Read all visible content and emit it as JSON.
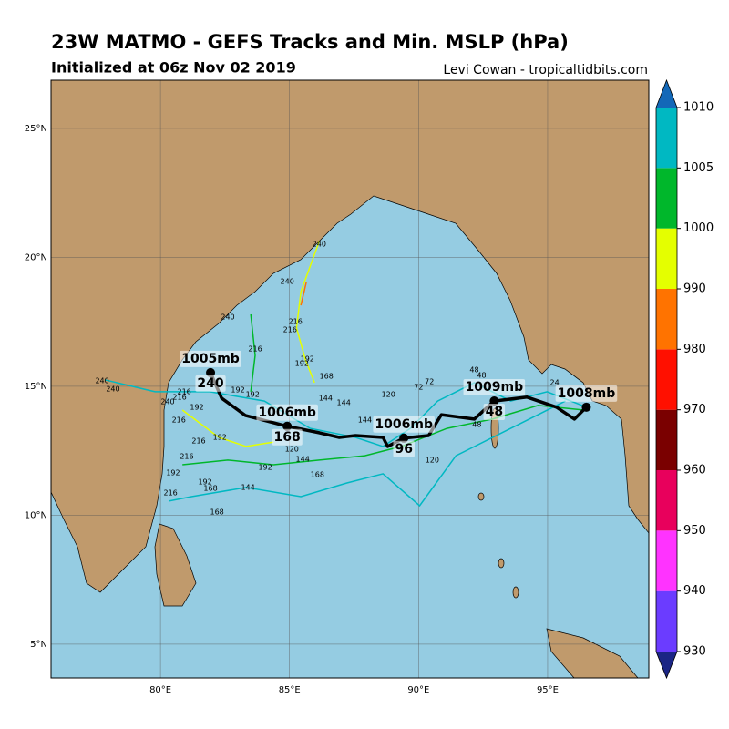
{
  "header": {
    "title": "23W MATMO - GEFS Tracks and Min. MSLP (hPa)",
    "subtitle": "Initialized at 06z Nov 02 2019",
    "credit": "Levi Cowan - tropicaltidbits.com"
  },
  "map": {
    "xlim": [
      75.76,
      98.92
    ],
    "ylim": [
      3.69,
      26.87
    ],
    "lon_ticks": [
      {
        "value": 80,
        "label": "80°E"
      },
      {
        "value": 85,
        "label": "85°E"
      },
      {
        "value": 90,
        "label": "90°E"
      },
      {
        "value": 95,
        "label": "95°E"
      }
    ],
    "lat_ticks": [
      {
        "value": 5,
        "label": "5°N"
      },
      {
        "value": 10,
        "label": "10°N"
      },
      {
        "value": 15,
        "label": "15°N"
      },
      {
        "value": 20,
        "label": "20°N"
      },
      {
        "value": 25,
        "label": "25°N"
      }
    ],
    "land_color": "#c09a6c",
    "ocean_color": "#95cce2"
  },
  "colorbar": {
    "ticks": [
      930,
      940,
      950,
      960,
      970,
      980,
      990,
      1000,
      1005,
      1010
    ],
    "colors": [
      "#6b3cff",
      "#ff33ff",
      "#e8005c",
      "#7a0000",
      "#ff1000",
      "#ff7300",
      "#e4ff00",
      "#00b72b",
      "#00b8c2"
    ],
    "under": "#1b2585",
    "over": "#1368b8"
  },
  "members": [
    {
      "pressure": 1006,
      "lon": [
        96.5,
        94.98,
        93.57,
        92.16,
        90.74,
        89.68,
        88.62,
        87.56,
        85.8,
        84.03,
        81.91,
        79.79,
        77.84
      ],
      "lat": [
        14.19,
        14.79,
        14.43,
        15.14,
        14.43,
        13.37,
        12.67,
        13.02,
        13.37,
        14.43,
        14.79,
        14.79,
        15.25
      ]
    },
    {
      "pressure": 1007,
      "lon": [
        95.69,
        93.57,
        91.45,
        90.04,
        88.62,
        87.21,
        85.44,
        83.32,
        81.2,
        80.32
      ],
      "lat": [
        14.43,
        13.37,
        12.31,
        10.37,
        11.61,
        11.25,
        10.72,
        11.08,
        10.72,
        10.55
      ]
    },
    {
      "pressure": 1003,
      "lon": [
        96.4,
        94.63,
        92.86,
        91.1,
        89.33,
        87.92,
        86.15,
        84.38,
        82.61,
        80.85
      ],
      "lat": [
        14.08,
        14.26,
        13.73,
        13.37,
        12.67,
        12.31,
        12.14,
        11.96,
        12.14,
        11.96
      ]
    },
    {
      "pressure": 1002,
      "lon": [
        83.5,
        83.67,
        83.5
      ],
      "lat": [
        17.79,
        16.2,
        14.79
      ]
    },
    {
      "pressure": 995,
      "lon": [
        86.15,
        85.44,
        85.27,
        85.62,
        85.97
      ],
      "lat": [
        20.62,
        18.67,
        17.26,
        16.02,
        15.14
      ]
    },
    {
      "pressure": 995,
      "lon": [
        80.85,
        82.26,
        83.32,
        84.38
      ],
      "lat": [
        14.08,
        13.02,
        12.67,
        12.84
      ]
    },
    {
      "pressure": 985,
      "lon": [
        85.65,
        85.44
      ],
      "lat": [
        19.03,
        18.14
      ]
    }
  ],
  "hour_labels": [
    {
      "text": "240",
      "lon": 86.15,
      "lat": 20.51
    },
    {
      "text": "240",
      "lon": 84.91,
      "lat": 19.06
    },
    {
      "text": "240",
      "lon": 82.61,
      "lat": 17.69
    },
    {
      "text": "240",
      "lon": 77.74,
      "lat": 15.21
    },
    {
      "text": "240",
      "lon": 78.16,
      "lat": 14.89
    },
    {
      "text": "240",
      "lon": 80.28,
      "lat": 14.4
    },
    {
      "text": "216",
      "lon": 85.23,
      "lat": 17.51
    },
    {
      "text": "216",
      "lon": 85.02,
      "lat": 17.19
    },
    {
      "text": "216",
      "lon": 83.67,
      "lat": 16.45
    },
    {
      "text": "216",
      "lon": 80.92,
      "lat": 14.79
    },
    {
      "text": "216",
      "lon": 80.74,
      "lat": 14.58
    },
    {
      "text": "216",
      "lon": 80.71,
      "lat": 13.69
    },
    {
      "text": "216",
      "lon": 81.48,
      "lat": 12.88
    },
    {
      "text": "216",
      "lon": 81.02,
      "lat": 12.28
    },
    {
      "text": "216",
      "lon": 80.39,
      "lat": 10.87
    },
    {
      "text": "192",
      "lon": 85.69,
      "lat": 16.06
    },
    {
      "text": "192",
      "lon": 85.48,
      "lat": 15.88
    },
    {
      "text": "192",
      "lon": 83.0,
      "lat": 14.86
    },
    {
      "text": "192",
      "lon": 83.57,
      "lat": 14.68
    },
    {
      "text": "192",
      "lon": 81.41,
      "lat": 14.19
    },
    {
      "text": "192",
      "lon": 82.3,
      "lat": 13.02
    },
    {
      "text": "192",
      "lon": 80.49,
      "lat": 11.64
    },
    {
      "text": "192",
      "lon": 81.73,
      "lat": 11.29
    },
    {
      "text": "192",
      "lon": 84.06,
      "lat": 11.86
    },
    {
      "text": "168",
      "lon": 86.43,
      "lat": 15.39
    },
    {
      "text": "168",
      "lon": 86.08,
      "lat": 11.57
    },
    {
      "text": "168",
      "lon": 81.94,
      "lat": 11.04
    },
    {
      "text": "168",
      "lon": 82.19,
      "lat": 10.12
    },
    {
      "text": "144",
      "lon": 86.4,
      "lat": 14.54
    },
    {
      "text": "144",
      "lon": 87.1,
      "lat": 14.36
    },
    {
      "text": "144",
      "lon": 87.92,
      "lat": 13.69
    },
    {
      "text": "144",
      "lon": 83.39,
      "lat": 11.08
    },
    {
      "text": "144",
      "lon": 85.51,
      "lat": 12.17
    },
    {
      "text": "120",
      "lon": 88.83,
      "lat": 14.68
    },
    {
      "text": "120",
      "lon": 85.09,
      "lat": 12.56
    },
    {
      "text": "120",
      "lon": 90.53,
      "lat": 12.14
    },
    {
      "text": "72",
      "lon": 90.0,
      "lat": 14.96
    },
    {
      "text": "72",
      "lon": 90.42,
      "lat": 15.18
    },
    {
      "text": "48",
      "lon": 92.16,
      "lat": 15.64
    },
    {
      "text": "48",
      "lon": 92.44,
      "lat": 15.42
    },
    {
      "text": "48",
      "lon": 92.26,
      "lat": 13.52
    },
    {
      "text": "24",
      "lon": 95.27,
      "lat": 15.14
    }
  ],
  "mean_track": {
    "lon": [
      96.5,
      96.04,
      95.34,
      94.2,
      92.93,
      92.16,
      90.88,
      90.39,
      89.43,
      88.8,
      88.62,
      87.56,
      86.93,
      86.15,
      84.91,
      83.29,
      82.37,
      81.94
    ],
    "lat": [
      14.19,
      13.73,
      14.19,
      14.58,
      14.43,
      13.73,
      13.9,
      13.09,
      12.99,
      12.67,
      13.02,
      13.09,
      13.02,
      13.2,
      13.45,
      13.87,
      14.54,
      15.53
    ],
    "labels": [
      {
        "lon": 96.5,
        "lat": 14.19,
        "pressure": "1008mb"
      },
      {
        "lon": 92.93,
        "lat": 14.43,
        "pressure": "1009mb",
        "hour": "48"
      },
      {
        "lon": 89.43,
        "lat": 12.99,
        "pressure": "1006mb",
        "hour": "96"
      },
      {
        "lon": 84.91,
        "lat": 13.45,
        "pressure": "1006mb",
        "hour": "168"
      },
      {
        "lon": 81.94,
        "lat": 15.53,
        "pressure": "1005mb",
        "hour": "240"
      }
    ]
  }
}
